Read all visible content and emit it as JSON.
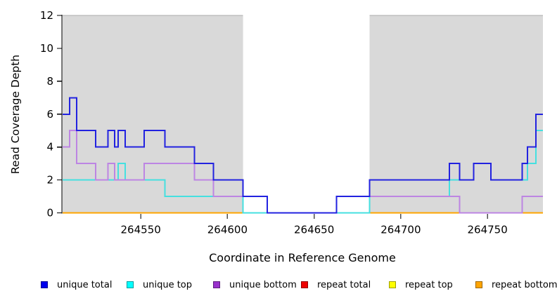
{
  "figure": {
    "xlabel": "Coordinate in Reference Genome",
    "ylabel": "Read Coverage Depth",
    "background_color": "#ffffff",
    "shaded_band_color": "#d9d9d9",
    "axis_color": "#000000"
  },
  "chart_data": {
    "type": "line",
    "step": true,
    "title": "",
    "xlabel": "Coordinate in Reference Genome",
    "ylabel": "Read Coverage Depth",
    "xlim": [
      264504.5,
      264782
    ],
    "ylim": [
      0,
      12
    ],
    "x_ticks": [
      264550,
      264600,
      264650,
      264700,
      264750
    ],
    "y_ticks": [
      0,
      2,
      4,
      6,
      8,
      10,
      12
    ],
    "grid": false,
    "legend_position": "bottom",
    "shaded_regions": [
      [
        264504.5,
        264609
      ],
      [
        264682,
        264782
      ]
    ],
    "draw_order": [
      "repeat total",
      "repeat top",
      "repeat bottom",
      "unique top",
      "unique bottom",
      "unique total"
    ],
    "series": [
      {
        "name": "unique total",
        "color": "#2222e0",
        "swatch": "#0000ee",
        "points": [
          [
            264505,
            6
          ],
          [
            264509,
            7
          ],
          [
            264513,
            5
          ],
          [
            264524,
            4
          ],
          [
            264531,
            5
          ],
          [
            264535,
            4
          ],
          [
            264537,
            5
          ],
          [
            264541,
            4
          ],
          [
            264552,
            5
          ],
          [
            264564,
            4
          ],
          [
            264581,
            3
          ],
          [
            264592,
            2
          ],
          [
            264609,
            1
          ],
          [
            264623,
            0
          ],
          [
            264663,
            1
          ],
          [
            264682,
            2
          ],
          [
            264728,
            3
          ],
          [
            264734,
            2
          ],
          [
            264742,
            3
          ],
          [
            264752,
            2
          ],
          [
            264770,
            3
          ],
          [
            264773,
            4
          ],
          [
            264778,
            6
          ],
          [
            264782,
            6
          ]
        ]
      },
      {
        "name": "unique top",
        "color": "#45e0e0",
        "swatch": "#00ffff",
        "points": [
          [
            264505,
            2
          ],
          [
            264537,
            3
          ],
          [
            264541,
            2
          ],
          [
            264564,
            1
          ],
          [
            264609,
            0
          ],
          [
            264682,
            1
          ],
          [
            264728,
            2
          ],
          [
            264742,
            3
          ],
          [
            264752,
            2
          ],
          [
            264773,
            3
          ],
          [
            264778,
            5
          ],
          [
            264782,
            5
          ]
        ]
      },
      {
        "name": "unique bottom",
        "color": "#bd85e3",
        "swatch": "#9932cc",
        "points": [
          [
            264505,
            4
          ],
          [
            264509,
            5
          ],
          [
            264513,
            3
          ],
          [
            264524,
            2
          ],
          [
            264531,
            3
          ],
          [
            264535,
            2
          ],
          [
            264552,
            3
          ],
          [
            264581,
            2
          ],
          [
            264592,
            1
          ],
          [
            264623,
            0
          ],
          [
            264663,
            1
          ],
          [
            264734,
            0
          ],
          [
            264770,
            1
          ],
          [
            264782,
            1
          ]
        ]
      },
      {
        "name": "repeat total",
        "color": "#dd2222",
        "swatch": "#ee0000",
        "points": [
          [
            264505,
            0
          ],
          [
            264782,
            0
          ]
        ]
      },
      {
        "name": "repeat top",
        "color": "#ffff00",
        "swatch": "#ffff00",
        "points": [
          [
            264505,
            0
          ],
          [
            264782,
            0
          ]
        ]
      },
      {
        "name": "repeat bottom",
        "color": "#ffa500",
        "swatch": "#ffa500",
        "points": [
          [
            264505,
            0
          ],
          [
            264782,
            0
          ]
        ]
      }
    ]
  }
}
